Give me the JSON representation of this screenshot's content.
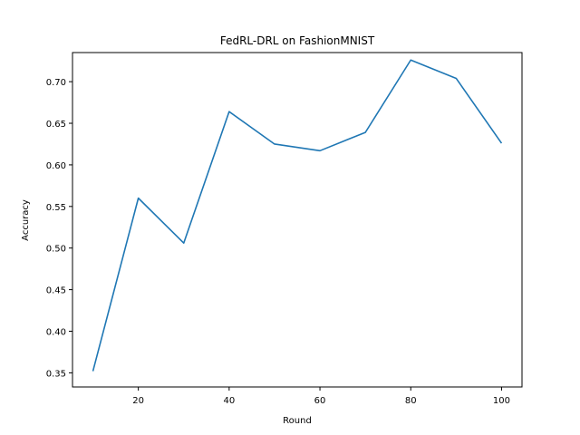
{
  "chart_data": {
    "type": "line",
    "title": "FedRL-DRL on FashionMNIST",
    "xlabel": "Round",
    "ylabel": "Accuracy",
    "xlim": [
      5.5,
      104.5
    ],
    "ylim": [
      0.333,
      0.735
    ],
    "xticks": [
      20,
      40,
      60,
      80,
      100
    ],
    "yticks": [
      0.35,
      0.4,
      0.45,
      0.5,
      0.55,
      0.6,
      0.65,
      0.7
    ],
    "grid": false,
    "series": [
      {
        "color": "#1f77b4",
        "x": [
          10,
          20,
          30,
          40,
          50,
          60,
          70,
          80,
          90,
          100
        ],
        "y": [
          0.352,
          0.56,
          0.506,
          0.664,
          0.625,
          0.617,
          0.639,
          0.726,
          0.704,
          0.626
        ]
      }
    ]
  }
}
